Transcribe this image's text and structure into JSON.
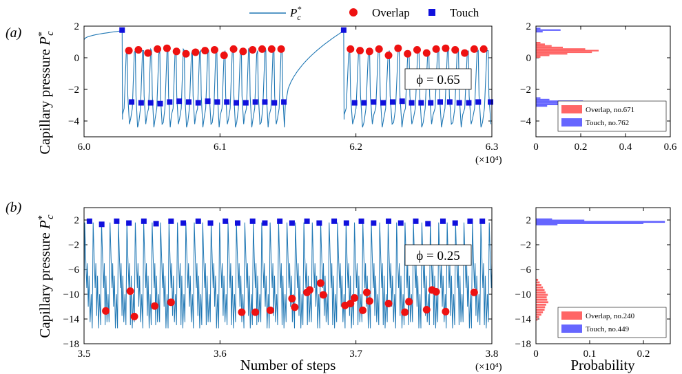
{
  "legend": {
    "line_label": "P*c",
    "overlap_label": "Overlap",
    "touch_label": "Touch"
  },
  "colors": {
    "line": "#1f77b4",
    "overlap": "#ee1111",
    "touch": "#1010dd",
    "hist_overlap": "#ff6666",
    "hist_touch": "#6666ff"
  },
  "chart_data": [
    {
      "id": "a-trace",
      "type": "line",
      "panel_label": "(a)",
      "ylabel": "Capillary pressure P*c",
      "xlabel": "",
      "x_multiplier": "(×10⁴)",
      "xlim": [
        6.0,
        6.3
      ],
      "ylim": [
        -5,
        2
      ],
      "xticks": [
        6.0,
        6.1,
        6.2,
        6.3
      ],
      "xtick_labels": [
        "6.0",
        "6.1",
        "6.2",
        "6.3"
      ],
      "yticks": [
        -4,
        -2,
        0,
        2
      ],
      "annotation": "ϕ = 0.65",
      "events": [
        {
          "x0": 6.003,
          "x1": 6.148,
          "n_cycles": 20,
          "touch_start": 6.028
        },
        {
          "x0": 6.191,
          "x1": 6.3,
          "n_cycles": 15,
          "touch_start": 6.191
        }
      ],
      "recovery_level": 1.7,
      "overlap_points": {
        "x": [
          6.033,
          6.04,
          6.047,
          6.054,
          6.061,
          6.068,
          6.075,
          6.082,
          6.089,
          6.096,
          6.103,
          6.11,
          6.117,
          6.124,
          6.131,
          6.138,
          6.145,
          6.196,
          6.203,
          6.21,
          6.217,
          6.224,
          6.231,
          6.238,
          6.245,
          6.252,
          6.259,
          6.266,
          6.273,
          6.28,
          6.287,
          6.294
        ],
        "y": [
          0.45,
          0.5,
          0.3,
          0.55,
          0.6,
          0.4,
          0.25,
          0.35,
          0.45,
          0.5,
          0.15,
          0.55,
          0.4,
          0.5,
          0.55,
          0.55,
          0.55,
          0.55,
          0.45,
          0.4,
          0.55,
          0.15,
          0.6,
          0.25,
          0.5,
          0.3,
          0.55,
          0.6,
          0.5,
          0.3,
          0.55,
          0.55
        ]
      },
      "touch_points": {
        "x": [
          6.028,
          6.035,
          6.042,
          6.049,
          6.056,
          6.063,
          6.07,
          6.077,
          6.084,
          6.091,
          6.098,
          6.105,
          6.112,
          6.119,
          6.126,
          6.133,
          6.14,
          6.147,
          6.191,
          6.199,
          6.206,
          6.213,
          6.22,
          6.227,
          6.234,
          6.241,
          6.248,
          6.255,
          6.262,
          6.269,
          6.276,
          6.283,
          6.29,
          6.299
        ],
        "y": [
          1.75,
          -2.8,
          -2.85,
          -2.85,
          -2.9,
          -2.8,
          -2.75,
          -2.8,
          -2.85,
          -2.75,
          -2.8,
          -2.8,
          -2.85,
          -2.85,
          -2.8,
          -2.8,
          -2.85,
          -2.8,
          1.75,
          -2.85,
          -2.85,
          -2.8,
          -2.85,
          -2.8,
          -2.75,
          -2.85,
          -2.85,
          -2.85,
          -2.8,
          -2.8,
          -2.85,
          -2.85,
          -2.8,
          -2.8
        ]
      }
    },
    {
      "id": "a-hist",
      "type": "bar",
      "orientation": "horizontal",
      "xlim": [
        0,
        0.6
      ],
      "ylim": [
        -5,
        2
      ],
      "xticks": [
        0,
        0.2,
        0.4,
        0.6
      ],
      "xtick_labels": [
        "0",
        "0.2",
        "0.4",
        "0.6"
      ],
      "yticks": [
        -4,
        -2,
        0,
        2
      ],
      "legend_entries": [
        "Overlap, no.671",
        "Touch, no.762"
      ],
      "overlap_bins": {
        "y": [
          0.95,
          0.85,
          0.75,
          0.65,
          0.55,
          0.45,
          0.35,
          0.25,
          0.15,
          0.05
        ],
        "probability": [
          0.02,
          0.04,
          0.07,
          0.12,
          0.22,
          0.28,
          0.25,
          0.14,
          0.06,
          0.02
        ]
      },
      "touch_bins": {
        "y": [
          1.85,
          1.75,
          1.65,
          -2.55,
          -2.65,
          -2.75,
          -2.85,
          -2.95,
          -3.05
        ],
        "probability": [
          0.02,
          0.11,
          0.03,
          0.02,
          0.06,
          0.21,
          0.5,
          0.16,
          0.05
        ]
      }
    },
    {
      "id": "b-trace",
      "type": "line",
      "panel_label": "(b)",
      "ylabel": "Capillary pressure P*c",
      "xlabel": "Number of steps",
      "x_multiplier": "(×10⁴)",
      "xlim": [
        3.5,
        3.8
      ],
      "ylim": [
        -18,
        4
      ],
      "xticks": [
        3.5,
        3.6,
        3.7,
        3.8
      ],
      "xtick_labels": [
        "3.5",
        "3.6",
        "3.7",
        "3.8"
      ],
      "yticks": [
        -18,
        -14,
        -10,
        -6,
        -2,
        2
      ],
      "annotation": "ϕ = 0.25",
      "cycle_period": 0.0062,
      "overlap_points": {
        "x": [
          3.516,
          3.534,
          3.537,
          3.552,
          3.564,
          3.616,
          3.626,
          3.637,
          3.653,
          3.655,
          3.664,
          3.666,
          3.674,
          3.676,
          3.692,
          3.696,
          3.699,
          3.705,
          3.708,
          3.71,
          3.724,
          3.736,
          3.739,
          3.752,
          3.756,
          3.759,
          3.766,
          3.787
        ],
        "y": [
          -12.7,
          -9.5,
          -13.6,
          -11.9,
          -11.3,
          -12.9,
          -12.9,
          -12.6,
          -10.7,
          -12.1,
          -9.7,
          -9.3,
          -8.2,
          -10.1,
          -11.8,
          -11.5,
          -10.6,
          -12.6,
          -9.7,
          -11.1,
          -11.5,
          -12.9,
          -11.2,
          -12.5,
          -9.3,
          -9.6,
          -12.8,
          -9.7
        ]
      },
      "touch_points": {
        "x": [
          3.504,
          3.513,
          3.524,
          3.533,
          3.544,
          3.553,
          3.564,
          3.573,
          3.584,
          3.593,
          3.604,
          3.613,
          3.624,
          3.633,
          3.644,
          3.653,
          3.664,
          3.673,
          3.684,
          3.693,
          3.704,
          3.713,
          3.724,
          3.733,
          3.744,
          3.753,
          3.764,
          3.773,
          3.784,
          3.793
        ],
        "y": [
          1.8,
          1.3,
          1.8,
          1.5,
          1.8,
          1.4,
          1.8,
          1.5,
          1.8,
          1.5,
          1.8,
          1.5,
          1.8,
          1.5,
          1.8,
          1.5,
          1.8,
          1.5,
          1.8,
          1.5,
          1.8,
          1.5,
          1.8,
          1.5,
          1.8,
          1.4,
          1.8,
          1.5,
          1.8,
          1.8
        ]
      }
    },
    {
      "id": "b-hist",
      "type": "bar",
      "orientation": "horizontal",
      "xlabel": "Probability",
      "xlim": [
        0,
        0.25
      ],
      "ylim": [
        -18,
        4
      ],
      "xticks": [
        0,
        0.1,
        0.2
      ],
      "xtick_labels": [
        "0",
        "0.1",
        "0.2"
      ],
      "yticks": [
        -18,
        -14,
        -10,
        -6,
        -2,
        2
      ],
      "legend_entries": [
        "Overlap, no.240",
        "Touch, no.449"
      ],
      "overlap_bins": {
        "y": [
          -7.7,
          -8.1,
          -8.5,
          -8.9,
          -9.3,
          -9.7,
          -10.1,
          -10.5,
          -10.9,
          -11.3,
          -11.7,
          -12.1,
          -12.5,
          -12.9,
          -13.3,
          -13.7,
          -14.1
        ],
        "probability": [
          0.004,
          0.007,
          0.01,
          0.013,
          0.016,
          0.018,
          0.022,
          0.02,
          0.021,
          0.023,
          0.019,
          0.017,
          0.016,
          0.013,
          0.01,
          0.006,
          0.003
        ]
      },
      "touch_bins": {
        "y": [
          2.1,
          1.9,
          1.7,
          1.5,
          1.3
        ],
        "probability": [
          0.03,
          0.09,
          0.24,
          0.2,
          0.04
        ]
      }
    }
  ]
}
